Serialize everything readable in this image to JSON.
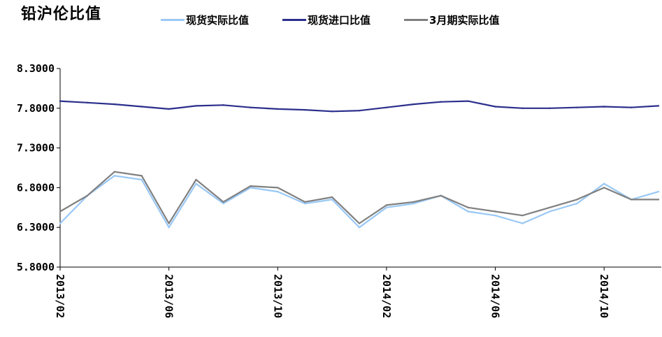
{
  "chart_data": {
    "type": "line",
    "title": "铅沪伦比值",
    "xlabel": "",
    "ylabel": "",
    "ylim": [
      5.8,
      8.3
    ],
    "y_ticks": [
      "8.3000",
      "7.8000",
      "7.3000",
      "6.8000",
      "6.3000",
      "5.8000"
    ],
    "x_ticks": [
      "2013/02",
      "2013/06",
      "2013/10",
      "2014/02",
      "2014/06",
      "2014/10"
    ],
    "x_range": [
      "2013/02",
      "2014/12"
    ],
    "grid": false,
    "legend_position": "top",
    "series": [
      {
        "name": "现货实际比值",
        "color": "#99c8f5",
        "x": [
          "2013/02",
          "2013/03",
          "2013/04",
          "2013/05",
          "2013/06",
          "2013/07",
          "2013/08",
          "2013/09",
          "2013/10",
          "2013/11",
          "2013/12",
          "2014/01",
          "2014/02",
          "2014/03",
          "2014/04",
          "2014/05",
          "2014/06",
          "2014/07",
          "2014/08",
          "2014/09",
          "2014/10",
          "2014/11",
          "2014/12"
        ],
        "values": [
          6.35,
          6.7,
          6.95,
          6.9,
          6.3,
          6.85,
          6.6,
          6.8,
          6.75,
          6.6,
          6.65,
          6.3,
          6.55,
          6.6,
          6.7,
          6.5,
          6.45,
          6.35,
          6.5,
          6.6,
          6.85,
          6.65,
          6.75
        ]
      },
      {
        "name": "现货进口比值",
        "color": "#2b2f8c",
        "x": [
          "2013/02",
          "2013/03",
          "2013/04",
          "2013/05",
          "2013/06",
          "2013/07",
          "2013/08",
          "2013/09",
          "2013/10",
          "2013/11",
          "2013/12",
          "2014/01",
          "2014/02",
          "2014/03",
          "2014/04",
          "2014/05",
          "2014/06",
          "2014/07",
          "2014/08",
          "2014/09",
          "2014/10",
          "2014/11",
          "2014/12"
        ],
        "values": [
          7.89,
          7.87,
          7.85,
          7.82,
          7.79,
          7.83,
          7.84,
          7.81,
          7.79,
          7.78,
          7.76,
          7.77,
          7.81,
          7.85,
          7.88,
          7.89,
          7.82,
          7.8,
          7.8,
          7.81,
          7.82,
          7.81,
          7.83
        ]
      },
      {
        "name": "3月期实际比值",
        "color": "#808080",
        "x": [
          "2013/02",
          "2013/03",
          "2013/04",
          "2013/05",
          "2013/06",
          "2013/07",
          "2013/08",
          "2013/09",
          "2013/10",
          "2013/11",
          "2013/12",
          "2014/01",
          "2014/02",
          "2014/03",
          "2014/04",
          "2014/05",
          "2014/06",
          "2014/07",
          "2014/08",
          "2014/09",
          "2014/10",
          "2014/11",
          "2014/12"
        ],
        "values": [
          6.5,
          6.7,
          7.0,
          6.95,
          6.35,
          6.9,
          6.62,
          6.82,
          6.8,
          6.62,
          6.68,
          6.35,
          6.58,
          6.62,
          6.7,
          6.55,
          6.5,
          6.45,
          6.55,
          6.65,
          6.8,
          6.65,
          6.65
        ]
      }
    ]
  }
}
